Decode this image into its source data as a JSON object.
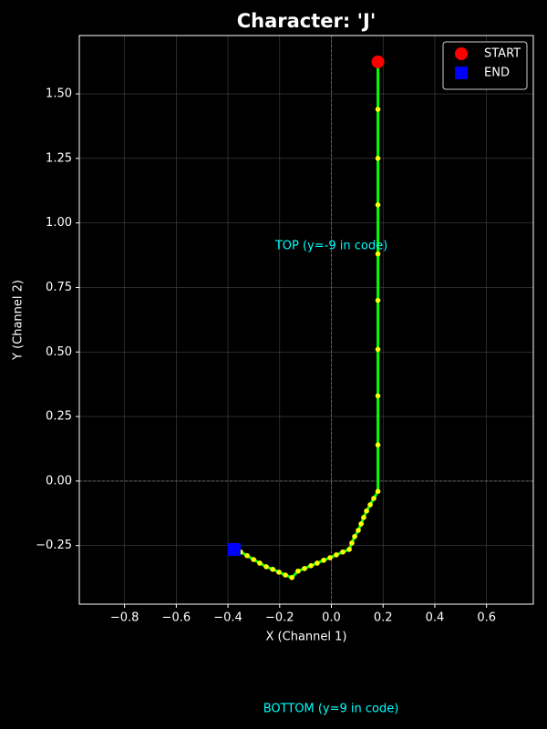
{
  "chart_data": {
    "type": "line",
    "title": "Character: 'J'",
    "x_label": "X (Channel 1)",
    "y_label": "Y (Channel 2)",
    "xlim": [
      -0.975,
      0.781
    ],
    "ylim": [
      -0.477,
      1.726
    ],
    "xticks": [
      {
        "value": -0.8,
        "label": "−0.8"
      },
      {
        "value": -0.6,
        "label": "−0.6"
      },
      {
        "value": -0.4,
        "label": "−0.4"
      },
      {
        "value": -0.2,
        "label": "−0.2"
      },
      {
        "value": 0,
        "label": "0.0"
      },
      0.2,
      0.4,
      0.6
    ],
    "yticks": [
      {
        "value": -0.25,
        "label": "−0.25"
      },
      {
        "value": 0,
        "label": "0.00"
      },
      0.25,
      {
        "value": 0.5,
        "label": "0.50"
      },
      0.75,
      {
        "value": 1,
        "label": "1.00"
      },
      1.25,
      {
        "value": 1.5,
        "label": "1.50"
      }
    ],
    "grid": true,
    "zero_lines": true,
    "legend": "upper right",
    "series": [
      {
        "color": "#00ff00",
        "marker_color": "#ffff00",
        "x": [
          0.18,
          0.18,
          0.18,
          0.18,
          0.18,
          0.18,
          0.18,
          0.18,
          0.18,
          0.18,
          0.164,
          0.15,
          0.136,
          0.125,
          0.115,
          0.104,
          0.09,
          0.079,
          0.069,
          0.044,
          0.019,
          -0.005,
          -0.03,
          -0.055,
          -0.079,
          -0.104,
          -0.129,
          -0.153,
          -0.178,
          -0.203,
          -0.227,
          -0.252,
          -0.277,
          -0.301,
          -0.326,
          -0.351,
          -0.376
        ],
        "values": [
          1.624,
          1.44,
          1.25,
          1.07,
          0.88,
          0.7,
          0.51,
          0.33,
          0.14,
          -0.04,
          -0.067,
          -0.092,
          -0.116,
          -0.141,
          -0.166,
          -0.191,
          -0.215,
          -0.24,
          -0.265,
          -0.275,
          -0.286,
          -0.297,
          -0.307,
          -0.318,
          -0.328,
          -0.339,
          -0.349,
          -0.374,
          -0.364,
          -0.353,
          -0.342,
          -0.332,
          -0.318,
          -0.304,
          -0.289,
          -0.275,
          -0.265
        ]
      }
    ],
    "markers": [
      {
        "name": "START",
        "x": 0.18,
        "y": 1.624,
        "color": "#ff0000",
        "shape": "circle"
      },
      {
        "name": "END",
        "x": -0.376,
        "y": -0.265,
        "color": "#0000ff",
        "shape": "square"
      }
    ],
    "annotations": [
      {
        "text": "TOP (y=-9 in code)",
        "color": "#00ffff"
      },
      {
        "text": "BOTTOM (y=9 in code)",
        "color": "#00ffff"
      }
    ]
  }
}
